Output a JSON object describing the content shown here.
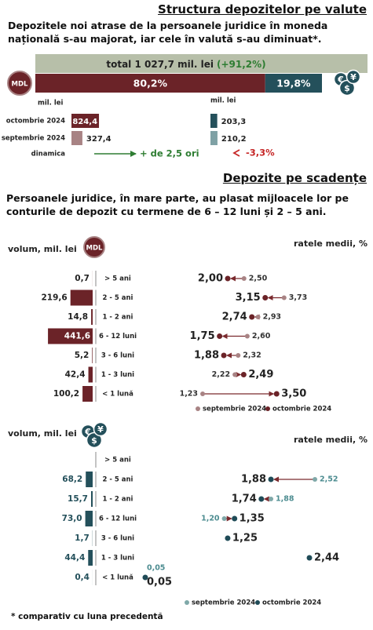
{
  "currency_icons": {
    "mdl": "MDL",
    "fx": [
      "€",
      "$",
      "¥"
    ]
  },
  "footnote": "* comparativ cu luna precedentă",
  "chart_data": [
    {
      "type": "currency-structure",
      "title": "Structura depozitelor pe valute",
      "subtitle": "Depozitele noi atrase de la persoanele juridice în moneda națională s-au majorat, iar cele în valută s-au diminuat*.",
      "total_label": "total 1 027,7 mil. lei",
      "total_change": "(+91,2%)",
      "shares": {
        "xlim": [
          0,
          100
        ],
        "series": [
          {
            "name": "MDL",
            "color": "#6b2328",
            "values": [
              80.2
            ],
            "value_labels": [
              "80,2%"
            ]
          },
          {
            "color": "#24505b",
            "values": [
              19.8
            ],
            "value_labels": [
              "19,8%"
            ]
          }
        ]
      },
      "unit_label": "mil. lei",
      "categories": [
        "octombrie 2024",
        "septembrie 2024"
      ],
      "xlim": [
        0,
        1000
      ],
      "series": [
        {
          "name": "MDL",
          "colors": [
            "#6b2328",
            "#a88384"
          ],
          "values": [
            824.4,
            327.4
          ],
          "value_labels": [
            "824,4",
            "327,4"
          ]
        },
        {
          "colors": [
            "#24505b",
            "#7fa1a5"
          ],
          "values": [
            203.3,
            210.2
          ],
          "value_labels": [
            "203,3",
            "210,2"
          ]
        }
      ],
      "dynamics_label": "dinamica",
      "dynamics": [
        "+ de 2,5 ori",
        "-3,3%"
      ]
    },
    {
      "type": "maturity-dumbbell",
      "title": "Depozite pe scadențe",
      "subtitle": "Persoanele juridice, în mare parte, au plasat mijloacele lor pe conturile de depozit cu termene de 6 – 12 luni și 2 – 5 ani.",
      "volume_label": "volum, mil. lei",
      "rate_label": "ratele medii, %",
      "categories": [
        "> 5 ani",
        "2 - 5 ani",
        "1 - 2 ani",
        "6 - 12 luni",
        "3 - 6 luni",
        "1 - 3 luni",
        "< 1 lună"
      ],
      "volumes": {
        "color": "#6b2328",
        "xlim": [
          0,
          450
        ],
        "values": [
          0.7,
          219.6,
          14.8,
          441.6,
          5.2,
          42.4,
          100.2
        ],
        "value_labels": [
          "0,7",
          "219,6",
          "14,8",
          "441,6",
          "5,2",
          "42,4",
          "100,2"
        ]
      },
      "xlim": [
        0,
        4
      ],
      "series": [
        {
          "name": "septembrie 2024",
          "color": "#a88384",
          "values": [
            2.5,
            3.73,
            2.93,
            2.6,
            2.32,
            2.22,
            1.23
          ],
          "value_labels": [
            "2,50",
            "3,73",
            "2,93",
            "2,60",
            "2,32",
            "2,22",
            "1,23"
          ]
        },
        {
          "name": "octombrie 2024",
          "color": "#6b2328",
          "values": [
            2.0,
            3.15,
            2.74,
            1.75,
            1.88,
            2.49,
            3.5
          ],
          "value_labels": [
            "2,00",
            "3,15",
            "2,74",
            "1,75",
            "1,88",
            "2,49",
            "3,50"
          ]
        }
      ]
    },
    {
      "type": "maturity-dumbbell",
      "volume_label": "volum, mil. lei",
      "rate_label": "ratele medii, %",
      "categories": [
        "> 5 ani",
        "2 - 5 ani",
        "1 - 2 ani",
        "6 - 12 luni",
        "3 - 6 luni",
        "1 - 3 luni",
        "< 1 lună"
      ],
      "volumes": {
        "color": "#24505b",
        "xlim": [
          0,
          450
        ],
        "values": [
          null,
          68.2,
          15.7,
          73.0,
          1.7,
          44.4,
          0.4
        ],
        "value_labels": [
          null,
          "68,2",
          "15,7",
          "73,0",
          "1,7",
          "44,4",
          "0,4"
        ]
      },
      "xlim": [
        0,
        3
      ],
      "series": [
        {
          "name": "septembrie 2024",
          "color": "#7fa8a8",
          "values": [
            null,
            2.52,
            1.88,
            1.2,
            null,
            null,
            0.05
          ],
          "value_labels": [
            null,
            "2,52",
            "1,88",
            "1,20",
            null,
            null,
            "0,05"
          ]
        },
        {
          "name": "octombrie 2024",
          "color": "#1f4b57",
          "values": [
            null,
            1.88,
            1.74,
            1.35,
            1.25,
            2.44,
            0.05
          ],
          "value_labels": [
            null,
            "1,88",
            "1,74",
            "1,35",
            "1,25",
            "2,44",
            "0,05"
          ]
        }
      ]
    }
  ]
}
